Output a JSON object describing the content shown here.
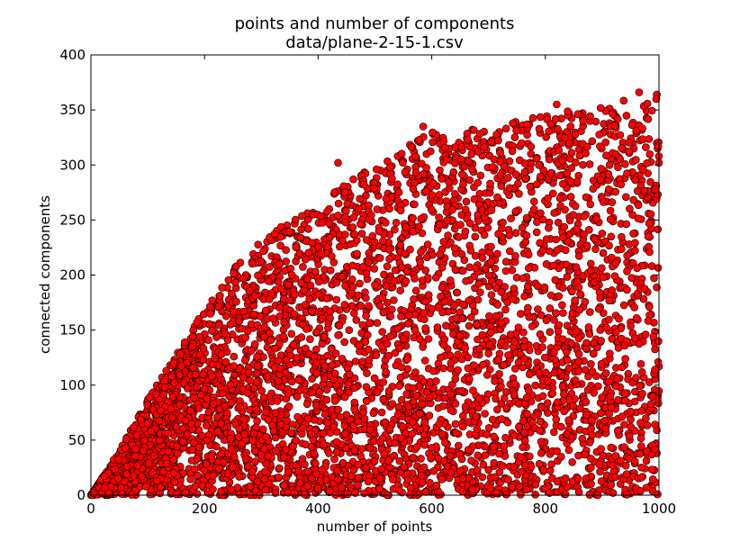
{
  "chart_data": {
    "type": "scatter",
    "title": "points and number of components",
    "subtitle": "data/plane-2-15-1.csv",
    "xlabel": "number of points",
    "ylabel": "connected components",
    "xlim": [
      0,
      1000
    ],
    "ylim": [
      0,
      400
    ],
    "x_ticks": [
      0,
      200,
      400,
      600,
      800,
      1000
    ],
    "y_ticks": [
      0,
      50,
      100,
      150,
      200,
      250,
      300,
      350,
      400
    ],
    "grid": false,
    "legend": "none",
    "marker": {
      "shape": "circle",
      "face_color": "#ff0000",
      "edge_color": "#000000"
    },
    "envelope": [
      [
        0,
        0
      ],
      [
        50,
        40
      ],
      [
        100,
        88
      ],
      [
        150,
        128
      ],
      [
        200,
        170
      ],
      [
        250,
        205
      ],
      [
        300,
        232
      ],
      [
        350,
        250
      ],
      [
        400,
        262
      ],
      [
        450,
        285
      ],
      [
        500,
        300
      ],
      [
        550,
        315
      ],
      [
        600,
        330
      ],
      [
        650,
        330
      ],
      [
        700,
        335
      ],
      [
        750,
        340
      ],
      [
        800,
        345
      ],
      [
        850,
        350
      ],
      [
        900,
        355
      ],
      [
        950,
        360
      ],
      [
        1000,
        365
      ]
    ],
    "notable_points": [
      {
        "x": 965,
        "y": 366
      },
      {
        "x": 585,
        "y": 335
      },
      {
        "x": 820,
        "y": 355
      },
      {
        "x": 435,
        "y": 302
      },
      {
        "x": 1000,
        "y": 302
      }
    ],
    "approx_point_count": 5000
  }
}
